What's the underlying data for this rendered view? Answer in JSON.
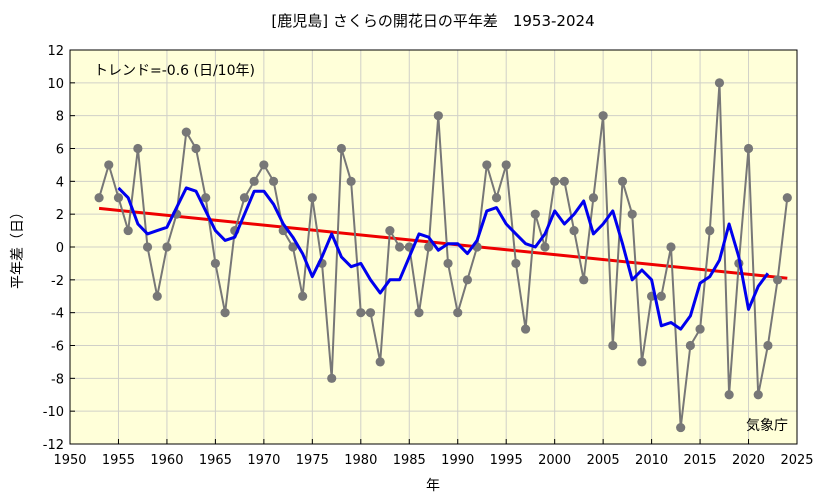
{
  "chart_data": {
    "type": "line",
    "title": "[鹿児島] さくらの開花日の平年差　1953-2024",
    "xlabel": "年",
    "ylabel": "平年差（日）",
    "trend_label": "トレンド=-0.6 (日/10年)",
    "source_label": "気象庁",
    "xlim": [
      1950,
      2025
    ],
    "ylim": [
      -12,
      12
    ],
    "x_ticks": [
      1950,
      1955,
      1960,
      1965,
      1970,
      1975,
      1980,
      1985,
      1990,
      1995,
      2000,
      2005,
      2010,
      2015,
      2020,
      2025
    ],
    "y_ticks": [
      -12,
      -10,
      -8,
      -6,
      -4,
      -2,
      0,
      2,
      4,
      6,
      8,
      10,
      12
    ],
    "grid": true,
    "series": [
      {
        "role": "annual",
        "color": "#777777",
        "x": [
          1953,
          1954,
          1955,
          1956,
          1957,
          1958,
          1959,
          1960,
          1961,
          1962,
          1963,
          1964,
          1965,
          1966,
          1967,
          1968,
          1969,
          1970,
          1971,
          1972,
          1973,
          1974,
          1975,
          1976,
          1977,
          1978,
          1979,
          1980,
          1981,
          1982,
          1983,
          1984,
          1985,
          1986,
          1987,
          1988,
          1989,
          1990,
          1991,
          1992,
          1993,
          1994,
          1995,
          1996,
          1997,
          1998,
          1999,
          2000,
          2001,
          2002,
          2003,
          2004,
          2005,
          2006,
          2007,
          2008,
          2009,
          2010,
          2011,
          2012,
          2013,
          2014,
          2015,
          2016,
          2017,
          2018,
          2019,
          2020,
          2021,
          2022,
          2023,
          2024
        ],
        "values": [
          3,
          5,
          3,
          1,
          6,
          0,
          -3,
          0,
          2,
          7,
          6,
          3,
          -1,
          -4,
          1,
          3,
          4,
          5,
          4,
          1,
          0,
          -3,
          3,
          -1,
          -8,
          6,
          4,
          -4,
          -4,
          -7,
          1,
          0,
          0,
          -4,
          0,
          8,
          -1,
          -4,
          -2,
          0,
          5,
          3,
          5,
          -1,
          -5,
          2,
          0,
          4,
          4,
          1,
          -2,
          3,
          8,
          -6,
          4,
          2,
          -7,
          -3,
          -3,
          0,
          -11,
          -6,
          -5,
          1,
          10,
          -9,
          -1,
          6,
          -9,
          -6,
          -2,
          3
        ]
      },
      {
        "role": "moving-average",
        "color": "#0000ee",
        "x": [
          1955,
          1956,
          1957,
          1958,
          1959,
          1960,
          1961,
          1962,
          1963,
          1964,
          1965,
          1966,
          1967,
          1968,
          1969,
          1970,
          1971,
          1972,
          1973,
          1974,
          1975,
          1976,
          1977,
          1978,
          1979,
          1980,
          1981,
          1982,
          1983,
          1984,
          1985,
          1986,
          1987,
          1988,
          1989,
          1990,
          1991,
          1992,
          1993,
          1994,
          1995,
          1996,
          1997,
          1998,
          1999,
          2000,
          2001,
          2002,
          2003,
          2004,
          2005,
          2006,
          2007,
          2008,
          2009,
          2010,
          2011,
          2012,
          2013,
          2014,
          2015,
          2016,
          2017,
          2018,
          2019,
          2020,
          2021,
          2022
        ],
        "values": [
          3.6,
          3.0,
          1.4,
          0.8,
          1.0,
          1.2,
          2.4,
          3.6,
          3.4,
          2.2,
          1.0,
          0.4,
          0.6,
          2.0,
          3.4,
          3.4,
          2.6,
          1.4,
          0.6,
          -0.4,
          -1.8,
          -0.6,
          0.8,
          -0.6,
          -1.2,
          -1.0,
          -2.0,
          -2.8,
          -2.0,
          -2.0,
          -0.6,
          0.8,
          0.6,
          -0.2,
          0.2,
          0.2,
          -0.4,
          0.4,
          2.2,
          2.4,
          1.4,
          0.8,
          0.2,
          0.0,
          0.8,
          2.2,
          1.4,
          2.0,
          2.8,
          0.8,
          1.4,
          2.2,
          0.2,
          -2.0,
          -1.4,
          -2.0,
          -4.8,
          -4.6,
          -5.0,
          -4.2,
          -2.2,
          -1.8,
          -0.8,
          1.4,
          -0.6,
          -3.8,
          -2.4,
          -1.6
        ]
      },
      {
        "role": "trend",
        "color": "#ee0000",
        "x": [
          1953,
          2024
        ],
        "values": [
          2.35,
          -1.9
        ]
      }
    ]
  }
}
